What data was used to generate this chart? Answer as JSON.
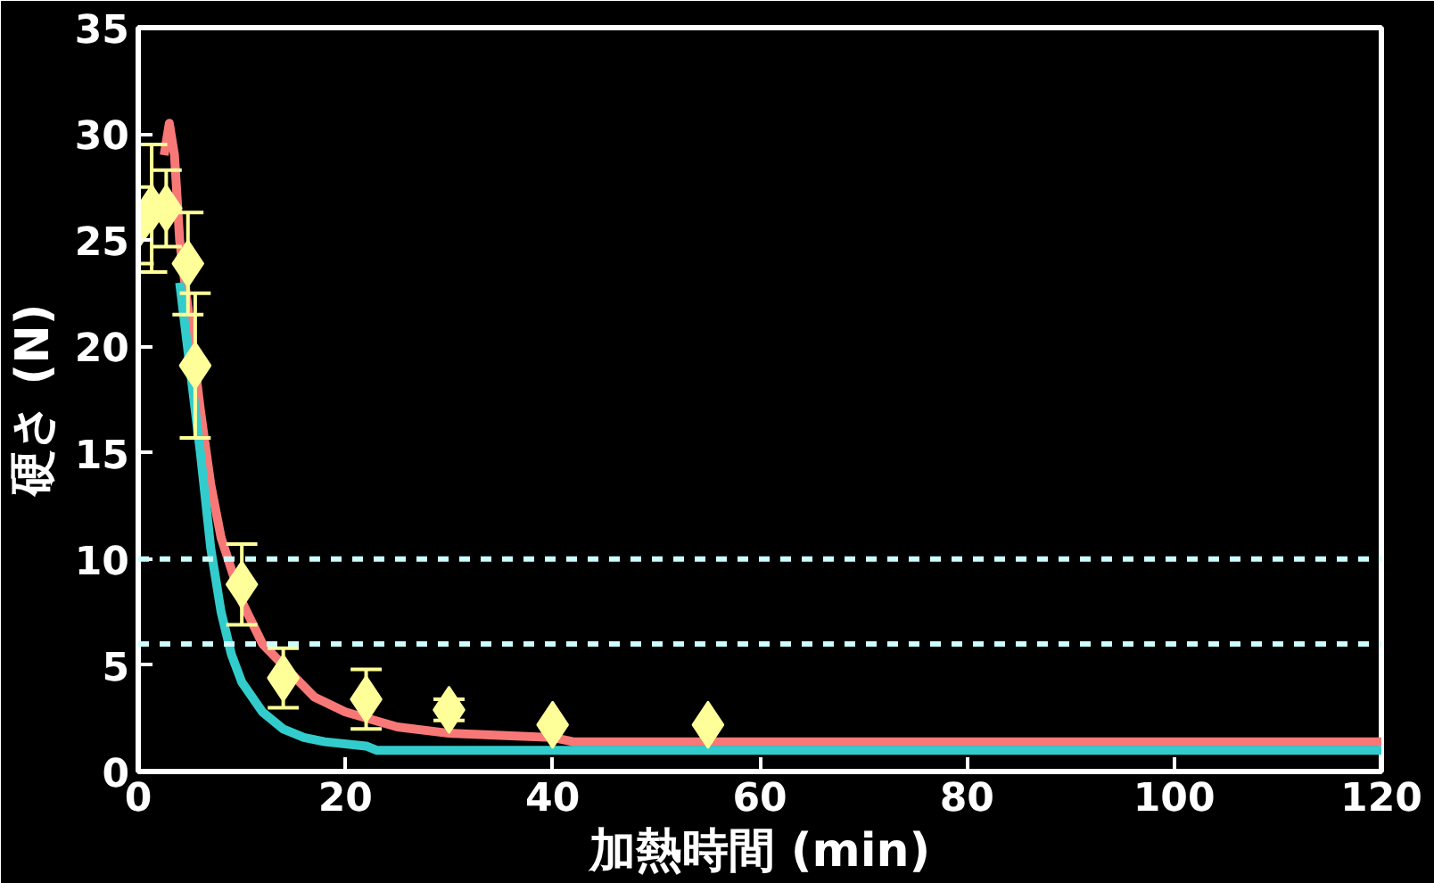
{
  "chart_data": {
    "type": "line",
    "xlabel": "加熱時間 (min)",
    "ylabel": "硬さ (N)",
    "xlim": [
      0,
      120
    ],
    "xticks": [
      0,
      20,
      40,
      60,
      80,
      100,
      120
    ],
    "ylim": [
      0,
      35
    ],
    "yticks": [
      0,
      5,
      10,
      15,
      20,
      25,
      30,
      35
    ],
    "grid": false,
    "series": [
      {
        "color": "#f87878",
        "x": [
          2.5,
          3,
          3.5,
          4,
          5,
          6,
          7,
          8,
          10,
          12,
          17,
          20,
          25,
          30,
          35,
          40,
          42,
          60,
          80,
          100,
          120
        ],
        "values": [
          29,
          30.5,
          29,
          25,
          21,
          17,
          13.5,
          11,
          8,
          6,
          3.5,
          2.8,
          2.1,
          1.8,
          1.7,
          1.6,
          1.4,
          1.4,
          1.4,
          1.4,
          1.4
        ]
      },
      {
        "color": "#33cccc",
        "x": [
          4,
          6,
          7,
          8,
          9,
          10,
          12,
          14,
          16,
          18,
          22,
          23,
          40,
          60,
          80,
          100,
          120
        ],
        "values": [
          23,
          15,
          10.5,
          7.5,
          5.5,
          4.2,
          2.8,
          2,
          1.6,
          1.4,
          1.2,
          1.0,
          1.0,
          1.0,
          1.0,
          1.0,
          1.0
        ]
      },
      {
        "type": "scatter",
        "marker": "diamond",
        "color": "#ffff99",
        "x": [
          0,
          1.3,
          2.7,
          4.8,
          5.5,
          10,
          14,
          22,
          30,
          40,
          55
        ],
        "values": [
          25.7,
          26.5,
          26.5,
          23.9,
          19.1,
          8.8,
          4.4,
          3.4,
          2.9,
          2.2,
          2.2
        ],
        "errors": [
          1.8,
          3,
          1.8,
          2.4,
          3.4,
          1.9,
          1.4,
          1.4,
          0.5,
          null,
          null
        ]
      }
    ],
    "ref_lines": [
      {
        "axis": "y",
        "value": 10,
        "color": "#ccffff",
        "line_style": "dashed"
      },
      {
        "axis": "y",
        "value": 6,
        "color": "#ccffff",
        "line_style": "dashed"
      }
    ]
  }
}
